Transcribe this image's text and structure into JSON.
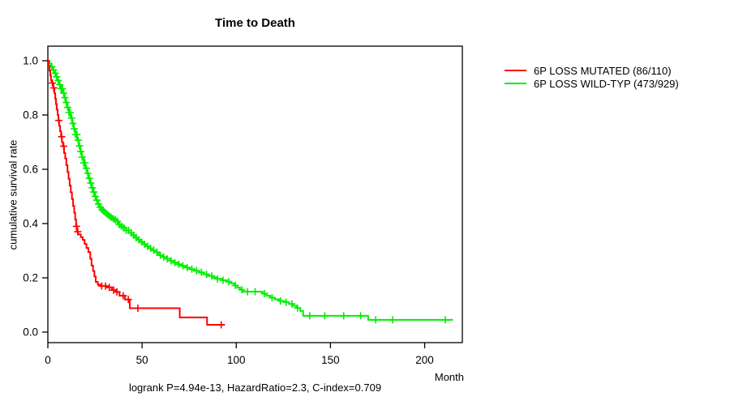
{
  "chart_data": {
    "type": "line",
    "subtype": "kaplan-meier-step-survival",
    "title": "Time to Death",
    "xlabel": "Month",
    "ylabel": "cumulative survival rate",
    "caption": "logrank P=4.94e-13, HazardRatio=2.3, C-index=0.709",
    "xlim": [
      0,
      220
    ],
    "ylim": [
      0.0,
      1.0
    ],
    "xticks": [
      0,
      50,
      100,
      150,
      200
    ],
    "yticks": [
      0.0,
      0.2,
      0.4,
      0.6,
      0.8,
      1.0
    ],
    "grid": false,
    "legend_position": "right-outside",
    "frame_color": "#000000",
    "series": [
      {
        "name": "6P LOSS WILD-TYP (473/929)",
        "color": "#00ee00",
        "end_month": 215,
        "steps": [
          [
            0,
            1.0
          ],
          [
            0.9,
            0.99
          ],
          [
            1.7,
            0.978
          ],
          [
            2.6,
            0.966
          ],
          [
            3.4,
            0.954
          ],
          [
            4.3,
            0.941
          ],
          [
            5.2,
            0.927
          ],
          [
            6.0,
            0.912
          ],
          [
            6.9,
            0.897
          ],
          [
            7.8,
            0.881
          ],
          [
            8.6,
            0.864
          ],
          [
            9.5,
            0.846
          ],
          [
            10.3,
            0.828
          ],
          [
            11.2,
            0.809
          ],
          [
            12.1,
            0.789
          ],
          [
            12.9,
            0.769
          ],
          [
            13.8,
            0.749
          ],
          [
            14.7,
            0.728
          ],
          [
            15.5,
            0.707
          ],
          [
            16.4,
            0.686
          ],
          [
            17.2,
            0.665
          ],
          [
            18.1,
            0.645
          ],
          [
            19.0,
            0.624
          ],
          [
            19.8,
            0.604
          ],
          [
            20.7,
            0.585
          ],
          [
            21.6,
            0.567
          ],
          [
            22.4,
            0.549
          ],
          [
            23.3,
            0.532
          ],
          [
            24.1,
            0.516
          ],
          [
            25.0,
            0.5
          ],
          [
            25.9,
            0.486
          ],
          [
            26.7,
            0.472
          ],
          [
            27.6,
            0.46
          ],
          [
            28.4,
            0.452
          ],
          [
            29.3,
            0.446
          ],
          [
            30.2,
            0.44
          ],
          [
            31.0,
            0.434
          ],
          [
            32.0,
            0.428
          ],
          [
            33.0,
            0.423
          ],
          [
            34.0,
            0.418
          ],
          [
            35.0,
            0.413
          ],
          [
            36.0,
            0.408
          ],
          [
            37.0,
            0.402
          ],
          [
            38.0,
            0.396
          ],
          [
            39.0,
            0.39
          ],
          [
            40.0,
            0.384
          ],
          [
            41.5,
            0.375
          ],
          [
            43.0,
            0.366
          ],
          [
            44.5,
            0.357
          ],
          [
            46.0,
            0.348
          ],
          [
            47.5,
            0.34
          ],
          [
            49.0,
            0.332
          ],
          [
            50.5,
            0.324
          ],
          [
            52.0,
            0.316
          ],
          [
            53.5,
            0.309
          ],
          [
            55.0,
            0.302
          ],
          [
            56.5,
            0.295
          ],
          [
            58.0,
            0.289
          ],
          [
            59.5,
            0.283
          ],
          [
            61.0,
            0.277
          ],
          [
            63.0,
            0.27
          ],
          [
            65.0,
            0.263
          ],
          [
            67.0,
            0.256
          ],
          [
            69.0,
            0.25
          ],
          [
            71.0,
            0.244
          ],
          [
            73.0,
            0.238
          ],
          [
            75.0,
            0.232
          ],
          [
            77.5,
            0.226
          ],
          [
            80.0,
            0.22
          ],
          [
            82.5,
            0.213
          ],
          [
            85.0,
            0.207
          ],
          [
            87.5,
            0.201
          ],
          [
            90.0,
            0.196
          ],
          [
            92.5,
            0.191
          ],
          [
            95.0,
            0.186
          ],
          [
            97.0,
            0.18
          ],
          [
            99.0,
            0.172
          ],
          [
            100.5,
            0.164
          ],
          [
            102.0,
            0.156
          ],
          [
            103.5,
            0.149
          ],
          [
            114.0,
            0.142
          ],
          [
            116.0,
            0.134
          ],
          [
            118.0,
            0.127
          ],
          [
            120.5,
            0.121
          ],
          [
            123.0,
            0.115
          ],
          [
            125.5,
            0.11
          ],
          [
            128.0,
            0.104
          ],
          [
            130.0,
            0.097
          ],
          [
            132.0,
            0.089
          ],
          [
            134.0,
            0.078
          ],
          [
            135.5,
            0.06
          ],
          [
            170.0,
            0.045
          ]
        ],
        "censor_months": [
          2.1,
          3.0,
          3.9,
          4.7,
          5.5,
          6.3,
          7.0,
          7.7,
          8.4,
          9.1,
          9.8,
          10.5,
          11.2,
          11.9,
          12.6,
          13.3,
          14.0,
          14.7,
          15.4,
          16.1,
          16.8,
          17.5,
          18.2,
          19.0,
          19.7,
          20.4,
          21.2,
          22.0,
          22.8,
          23.6,
          24.4,
          25.2,
          26.0,
          26.9,
          27.8,
          28.7,
          29.6,
          30.6,
          31.6,
          32.6,
          33.6,
          34.7,
          35.8,
          36.9,
          38.0,
          39.2,
          40.4,
          41.6,
          42.9,
          44.2,
          45.5,
          46.9,
          48.3,
          49.8,
          51.3,
          52.9,
          54.5,
          56.2,
          57.9,
          59.7,
          61.5,
          63.4,
          65.4,
          67.4,
          69.5,
          71.7,
          74.0,
          76.4,
          78.9,
          81.5,
          84.2,
          87.0,
          90.0,
          93.0,
          96.0,
          99.5,
          103.0,
          106.0,
          110.0,
          115.0,
          119.0,
          123.5,
          126.5,
          129.5,
          132.5,
          139.0,
          147.0,
          157.0,
          166.0,
          174.0,
          183.0,
          211.0
        ]
      },
      {
        "name": "6P LOSS MUTATED (86/110)",
        "color": "#ff0000",
        "end_month": 94,
        "steps": [
          [
            0,
            1.0
          ],
          [
            0.4,
            0.981
          ],
          [
            0.9,
            0.963
          ],
          [
            1.3,
            0.945
          ],
          [
            1.7,
            0.927
          ],
          [
            2.2,
            0.918
          ],
          [
            3.0,
            0.9
          ],
          [
            3.5,
            0.88
          ],
          [
            3.9,
            0.86
          ],
          [
            4.3,
            0.84
          ],
          [
            4.7,
            0.82
          ],
          [
            5.2,
            0.8
          ],
          [
            5.6,
            0.78
          ],
          [
            6.0,
            0.76
          ],
          [
            6.5,
            0.74
          ],
          [
            7.0,
            0.72
          ],
          [
            7.5,
            0.7
          ],
          [
            8.0,
            0.685
          ],
          [
            8.6,
            0.66
          ],
          [
            9.2,
            0.64
          ],
          [
            9.8,
            0.615
          ],
          [
            10.4,
            0.59
          ],
          [
            11.0,
            0.565
          ],
          [
            11.6,
            0.54
          ],
          [
            12.2,
            0.515
          ],
          [
            12.8,
            0.49
          ],
          [
            13.4,
            0.465
          ],
          [
            14.0,
            0.44
          ],
          [
            14.5,
            0.415
          ],
          [
            15.0,
            0.39
          ],
          [
            15.4,
            0.37
          ],
          [
            16.0,
            0.36
          ],
          [
            17.5,
            0.35
          ],
          [
            18.5,
            0.34
          ],
          [
            19.5,
            0.325
          ],
          [
            20.5,
            0.31
          ],
          [
            21.5,
            0.295
          ],
          [
            22.5,
            0.27
          ],
          [
            23.2,
            0.245
          ],
          [
            24.0,
            0.225
          ],
          [
            24.7,
            0.205
          ],
          [
            25.4,
            0.185
          ],
          [
            26.5,
            0.175
          ],
          [
            28.0,
            0.17
          ],
          [
            31.0,
            0.165
          ],
          [
            34.0,
            0.155
          ],
          [
            36.0,
            0.148
          ],
          [
            38.0,
            0.134
          ],
          [
            41.0,
            0.12
          ],
          [
            43.5,
            0.088
          ],
          [
            70.0,
            0.054
          ],
          [
            84.5,
            0.027
          ]
        ],
        "censor_months": [
          2.4,
          3.1,
          5.8,
          7.3,
          8.4,
          15.2,
          15.9,
          28.6,
          30.6,
          32.6,
          34.9,
          36.7,
          40.0,
          42.7,
          47.8,
          92.0
        ]
      }
    ],
    "legend": {
      "entries": [
        {
          "label": "6P LOSS MUTATED (86/110)",
          "color": "#ff0000"
        },
        {
          "label": "6P LOSS WILD-TYP (473/929)",
          "color": "#00ee00"
        }
      ]
    }
  }
}
